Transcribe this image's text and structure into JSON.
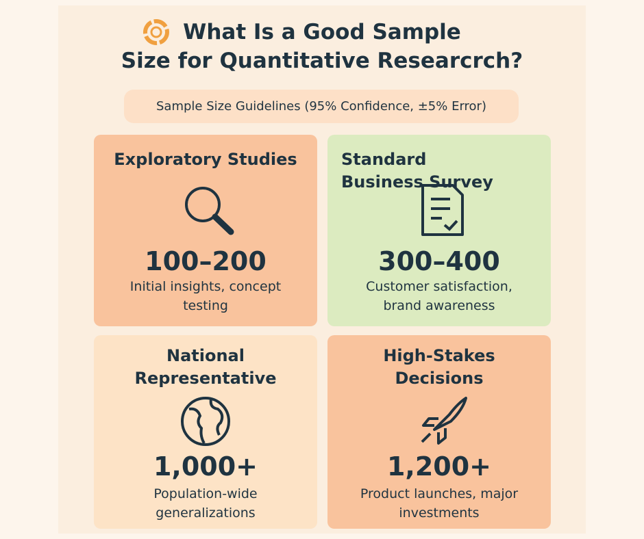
{
  "header": {
    "title_lines": [
      "What Is a Good Sample",
      "Size for Quantitative Researcrch?"
    ],
    "subtitle": "Sample Size Guidelines (95% Confidence, ±5% Error)"
  },
  "cards": [
    {
      "title": "Exploratory Studies",
      "range": "100–200",
      "description": "Initial insights, concept testing"
    },
    {
      "title": "Standard Business Survey",
      "range": "300–400",
      "description": "Customer satisfaction, brand awareness"
    },
    {
      "title": "National Representative",
      "range": "1,000+",
      "description": "Population-wide generalizations"
    },
    {
      "title": "High-Stakes Decisions",
      "range": "1,200+",
      "description": "Product launches, major investments"
    }
  ]
}
